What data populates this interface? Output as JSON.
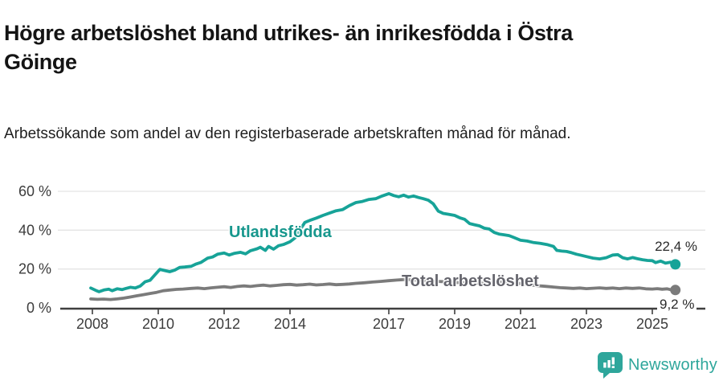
{
  "header": {
    "title": "Högre arbetslöshet bland utrikes- än inrikesfödda i Östra Göinge",
    "subtitle": "Arbetssökande som andel av den registerbaserade arbetskraften månad för månad."
  },
  "chart_data": {
    "type": "line",
    "title": "Högre arbetslöshet bland utrikes- än inrikesfödda i Östra Göinge",
    "xlabel": "",
    "ylabel": "Arbetssökande som andel av den registerbaserade arbetskraften",
    "x_ticks": [
      2008,
      2010,
      2012,
      2014,
      2017,
      2019,
      2021,
      2023,
      2025
    ],
    "x_tick_labels": [
      "2008",
      "2010",
      "2012",
      "2014",
      "2017",
      "2019",
      "2021",
      "2023",
      "2025"
    ],
    "y_ticks": [
      0,
      20,
      40,
      60
    ],
    "y_tick_labels": [
      "0 %",
      "20 %",
      "40 %",
      "60 %"
    ],
    "x_range": [
      2007.95,
      2025.7
    ],
    "y_range": [
      0,
      62
    ],
    "grid": "horizontal-only",
    "legend_position": "inline-labels",
    "series": [
      {
        "name": "Utlandsfödda",
        "color": "#17A398",
        "label_color": "#17978D",
        "end_value": 22.4,
        "end_value_label": "22,4 %",
        "points": [
          [
            2007.95,
            10.2
          ],
          [
            2008.1,
            9.0
          ],
          [
            2008.2,
            8.3
          ],
          [
            2008.35,
            9.2
          ],
          [
            2008.5,
            9.6
          ],
          [
            2008.6,
            8.8
          ],
          [
            2008.75,
            9.8
          ],
          [
            2008.9,
            9.4
          ],
          [
            2009.0,
            9.9
          ],
          [
            2009.15,
            10.6
          ],
          [
            2009.3,
            10.2
          ],
          [
            2009.45,
            11.2
          ],
          [
            2009.6,
            13.4
          ],
          [
            2009.75,
            14.2
          ],
          [
            2009.9,
            17.0
          ],
          [
            2010.05,
            19.8
          ],
          [
            2010.2,
            19.2
          ],
          [
            2010.35,
            18.6
          ],
          [
            2010.5,
            19.4
          ],
          [
            2010.65,
            20.8
          ],
          [
            2010.8,
            21.0
          ],
          [
            2011.0,
            21.4
          ],
          [
            2011.15,
            22.6
          ],
          [
            2011.3,
            23.4
          ],
          [
            2011.5,
            25.6
          ],
          [
            2011.65,
            26.2
          ],
          [
            2011.8,
            27.6
          ],
          [
            2012.0,
            28.2
          ],
          [
            2012.15,
            27.2
          ],
          [
            2012.3,
            28.0
          ],
          [
            2012.5,
            28.6
          ],
          [
            2012.65,
            27.8
          ],
          [
            2012.8,
            29.4
          ],
          [
            2013.0,
            30.4
          ],
          [
            2013.1,
            31.2
          ],
          [
            2013.25,
            29.6
          ],
          [
            2013.35,
            31.6
          ],
          [
            2013.5,
            30.2
          ],
          [
            2013.65,
            32.0
          ],
          [
            2013.8,
            32.6
          ],
          [
            2014.0,
            34.0
          ],
          [
            2014.15,
            36.0
          ],
          [
            2014.3,
            40.0
          ],
          [
            2014.45,
            44.0
          ],
          [
            2014.6,
            45.0
          ],
          [
            2014.8,
            46.2
          ],
          [
            2015.0,
            47.6
          ],
          [
            2015.2,
            48.8
          ],
          [
            2015.4,
            50.0
          ],
          [
            2015.6,
            50.6
          ],
          [
            2015.8,
            52.6
          ],
          [
            2016.0,
            54.2
          ],
          [
            2016.2,
            54.8
          ],
          [
            2016.4,
            55.8
          ],
          [
            2016.6,
            56.2
          ],
          [
            2016.8,
            57.6
          ],
          [
            2017.0,
            58.8
          ],
          [
            2017.15,
            57.8
          ],
          [
            2017.3,
            57.2
          ],
          [
            2017.45,
            58.0
          ],
          [
            2017.6,
            57.0
          ],
          [
            2017.75,
            57.6
          ],
          [
            2017.9,
            56.8
          ],
          [
            2018.05,
            56.2
          ],
          [
            2018.2,
            55.4
          ],
          [
            2018.35,
            53.6
          ],
          [
            2018.5,
            49.8
          ],
          [
            2018.65,
            48.6
          ],
          [
            2018.8,
            48.2
          ],
          [
            2019.0,
            47.6
          ],
          [
            2019.15,
            46.4
          ],
          [
            2019.3,
            45.6
          ],
          [
            2019.45,
            43.4
          ],
          [
            2019.6,
            42.8
          ],
          [
            2019.75,
            42.2
          ],
          [
            2019.9,
            41.0
          ],
          [
            2020.05,
            40.6
          ],
          [
            2020.2,
            38.8
          ],
          [
            2020.35,
            38.0
          ],
          [
            2020.5,
            37.6
          ],
          [
            2020.65,
            37.2
          ],
          [
            2020.8,
            36.2
          ],
          [
            2021.0,
            34.8
          ],
          [
            2021.2,
            34.4
          ],
          [
            2021.4,
            33.6
          ],
          [
            2021.6,
            33.2
          ],
          [
            2021.8,
            32.6
          ],
          [
            2022.0,
            31.6
          ],
          [
            2022.1,
            29.6
          ],
          [
            2022.25,
            29.2
          ],
          [
            2022.4,
            29.0
          ],
          [
            2022.55,
            28.4
          ],
          [
            2022.7,
            27.6
          ],
          [
            2022.85,
            27.0
          ],
          [
            2023.0,
            26.4
          ],
          [
            2023.2,
            25.6
          ],
          [
            2023.4,
            25.2
          ],
          [
            2023.6,
            25.8
          ],
          [
            2023.8,
            27.2
          ],
          [
            2023.95,
            27.4
          ],
          [
            2024.1,
            25.8
          ],
          [
            2024.25,
            25.2
          ],
          [
            2024.4,
            25.9
          ],
          [
            2024.55,
            25.3
          ],
          [
            2024.7,
            24.8
          ],
          [
            2024.85,
            24.4
          ],
          [
            2025.0,
            24.3
          ],
          [
            2025.1,
            23.3
          ],
          [
            2025.25,
            24.1
          ],
          [
            2025.4,
            23.0
          ],
          [
            2025.55,
            23.5
          ],
          [
            2025.7,
            22.4
          ]
        ]
      },
      {
        "name": "Total arbetslöshet",
        "color": "#7B7B7B",
        "label_color": "#64646C",
        "end_value": 9.2,
        "end_value_label": "9,2 %",
        "points": [
          [
            2007.95,
            4.6
          ],
          [
            2008.15,
            4.4
          ],
          [
            2008.35,
            4.5
          ],
          [
            2008.55,
            4.3
          ],
          [
            2008.75,
            4.6
          ],
          [
            2008.95,
            5.0
          ],
          [
            2009.15,
            5.6
          ],
          [
            2009.35,
            6.2
          ],
          [
            2009.55,
            6.8
          ],
          [
            2009.75,
            7.4
          ],
          [
            2009.95,
            8.0
          ],
          [
            2010.15,
            8.8
          ],
          [
            2010.35,
            9.2
          ],
          [
            2010.55,
            9.5
          ],
          [
            2010.75,
            9.7
          ],
          [
            2011.0,
            10.0
          ],
          [
            2011.2,
            10.2
          ],
          [
            2011.4,
            9.9
          ],
          [
            2011.6,
            10.3
          ],
          [
            2011.8,
            10.6
          ],
          [
            2012.0,
            10.9
          ],
          [
            2012.2,
            10.5
          ],
          [
            2012.4,
            11.0
          ],
          [
            2012.6,
            11.3
          ],
          [
            2012.8,
            11.0
          ],
          [
            2013.0,
            11.4
          ],
          [
            2013.2,
            11.7
          ],
          [
            2013.4,
            11.3
          ],
          [
            2013.6,
            11.6
          ],
          [
            2013.8,
            11.9
          ],
          [
            2014.0,
            12.1
          ],
          [
            2014.2,
            11.7
          ],
          [
            2014.4,
            11.9
          ],
          [
            2014.6,
            12.2
          ],
          [
            2014.8,
            11.8
          ],
          [
            2015.0,
            12.0
          ],
          [
            2015.2,
            12.3
          ],
          [
            2015.4,
            11.9
          ],
          [
            2015.6,
            12.1
          ],
          [
            2015.8,
            12.3
          ],
          [
            2016.0,
            12.6
          ],
          [
            2016.25,
            12.9
          ],
          [
            2016.5,
            13.3
          ],
          [
            2016.75,
            13.6
          ],
          [
            2017.0,
            14.0
          ],
          [
            2017.25,
            14.3
          ],
          [
            2017.5,
            14.6
          ],
          [
            2017.75,
            14.4
          ],
          [
            2018.0,
            14.1
          ],
          [
            2018.25,
            13.8
          ],
          [
            2018.5,
            13.6
          ],
          [
            2018.75,
            13.4
          ],
          [
            2019.0,
            13.1
          ],
          [
            2019.25,
            12.9
          ],
          [
            2019.5,
            12.7
          ],
          [
            2019.75,
            12.6
          ],
          [
            2020.0,
            12.9
          ],
          [
            2020.25,
            13.2
          ],
          [
            2020.5,
            13.3
          ],
          [
            2020.75,
            13.0
          ],
          [
            2021.0,
            12.5
          ],
          [
            2021.25,
            11.9
          ],
          [
            2021.5,
            11.4
          ],
          [
            2021.75,
            11.1
          ],
          [
            2022.0,
            10.7
          ],
          [
            2022.2,
            10.4
          ],
          [
            2022.4,
            10.2
          ],
          [
            2022.6,
            10.0
          ],
          [
            2022.8,
            10.2
          ],
          [
            2023.0,
            9.9
          ],
          [
            2023.2,
            10.1
          ],
          [
            2023.4,
            10.3
          ],
          [
            2023.6,
            10.0
          ],
          [
            2023.8,
            10.2
          ],
          [
            2024.0,
            9.9
          ],
          [
            2024.2,
            10.2
          ],
          [
            2024.4,
            10.0
          ],
          [
            2024.6,
            10.2
          ],
          [
            2024.8,
            9.8
          ],
          [
            2025.0,
            9.7
          ],
          [
            2025.15,
            9.9
          ],
          [
            2025.3,
            9.6
          ],
          [
            2025.45,
            9.8
          ],
          [
            2025.55,
            9.4
          ],
          [
            2025.7,
            9.2
          ]
        ]
      }
    ]
  },
  "branding": {
    "name": "Newsworthy",
    "color": "#2EA69B",
    "icon": "newsworthy-chart-bubble-icon"
  }
}
